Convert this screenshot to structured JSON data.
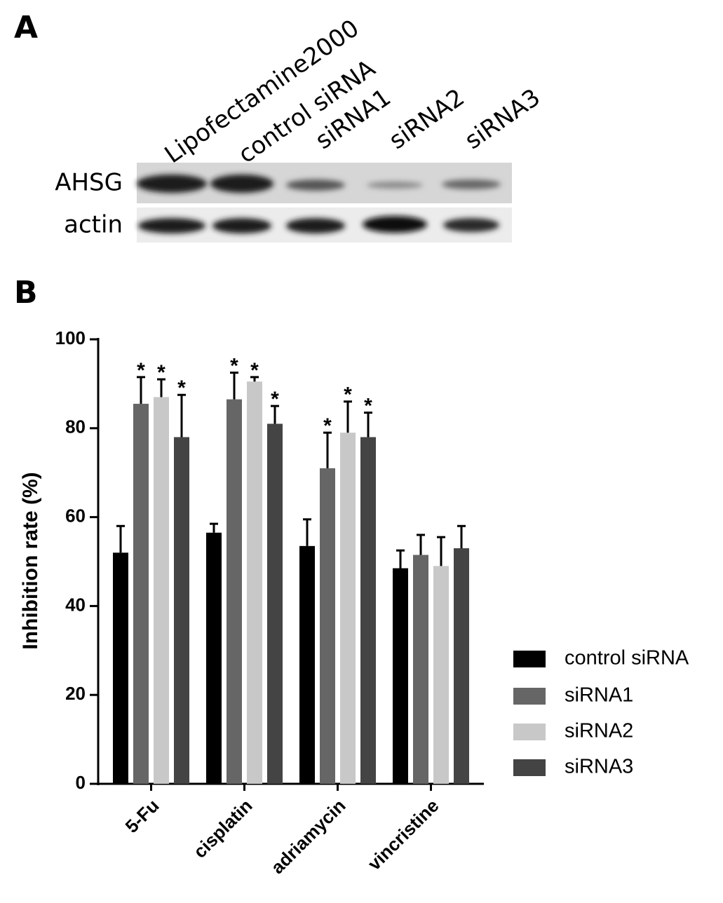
{
  "panels": {
    "a": "A",
    "b": "B"
  },
  "blot": {
    "lanes": [
      "Lipofectamine2000",
      "control siRNA",
      "siRNA1",
      "siRNA2",
      "siRNA3"
    ],
    "rows": [
      "AHSG",
      "actin"
    ]
  },
  "chart_data": {
    "type": "bar",
    "y_label": "Inhibition rate (%)",
    "categories": [
      "5-Fu",
      "cisplatin",
      "adriamycin",
      "vincristine"
    ],
    "series": [
      {
        "name": "control siRNA",
        "color": "#000000",
        "values": [
          52,
          56.5,
          53.5,
          48.5
        ],
        "errors": [
          6,
          2,
          6,
          4
        ],
        "annotations": [
          null,
          null,
          null,
          null
        ]
      },
      {
        "name": "siRNA1",
        "color": "#666666",
        "values": [
          85.5,
          86.5,
          71,
          51.5
        ],
        "errors": [
          6,
          6,
          8,
          4.5
        ],
        "annotations": [
          "*",
          "*",
          "*",
          null
        ]
      },
      {
        "name": "siRNA2",
        "color": "#c8c8c8",
        "values": [
          87,
          90.5,
          79,
          49
        ],
        "errors": [
          4,
          1,
          7,
          6.5
        ],
        "annotations": [
          "*",
          "*",
          "*",
          null
        ]
      },
      {
        "name": "siRNA3",
        "color": "#444444",
        "values": [
          78,
          81,
          78,
          53
        ],
        "errors": [
          9.5,
          4,
          5.5,
          5
        ],
        "annotations": [
          "*",
          "*",
          "*",
          null
        ]
      }
    ],
    "ylim": [
      0,
      100
    ],
    "yticks": [
      0,
      20,
      40,
      60,
      80,
      100
    ],
    "legend": "right"
  }
}
